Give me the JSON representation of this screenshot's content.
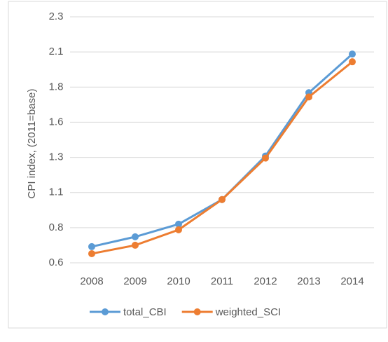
{
  "chart_data": {
    "type": "line",
    "x": [
      "2008",
      "2009",
      "2010",
      "2011",
      "2012",
      "2013",
      "2014"
    ],
    "y_label": "CPI index, (2011=base)",
    "ylim": [
      0.55,
      2.3
    ],
    "yticks": [
      {
        "value": 0.55,
        "label": "0.6"
      },
      0.8,
      {
        "value": 1.05,
        "label": "1.1"
      },
      1.3,
      {
        "value": 1.55,
        "label": "1.6"
      },
      1.8,
      {
        "value": 2.05,
        "label": "2.1"
      },
      2.3
    ],
    "grid": true,
    "legend": "bottom",
    "series": [
      {
        "name": "total_CBI",
        "color": "#5b9bd5",
        "values": [
          0.665,
          0.735,
          0.825,
          1.0,
          1.31,
          1.76,
          2.035
        ]
      },
      {
        "name": "weighted_SCI",
        "color": "#ed7d31",
        "values": [
          0.615,
          0.675,
          0.785,
          1.0,
          1.295,
          1.73,
          1.98
        ]
      }
    ]
  }
}
